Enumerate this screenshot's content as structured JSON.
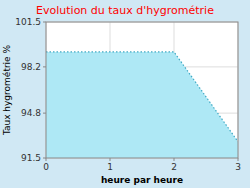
{
  "chart_data": {
    "type": "area",
    "title": "Evolution du taux d'hygrométrie",
    "x_label": "heure par heure",
    "y_label": "Taux hygrométrie %",
    "x": [
      0,
      2,
      3
    ],
    "values": [
      99.3,
      99.3,
      92.7
    ],
    "xlim": [
      0,
      3
    ],
    "ylim": [
      91.5,
      101.5
    ],
    "xticks": [
      0,
      1,
      2,
      3
    ],
    "yticks": [
      91.5,
      94.8,
      98.2,
      101.5
    ],
    "color": "#aee8f5",
    "line_style": "dotted",
    "grid": true
  }
}
